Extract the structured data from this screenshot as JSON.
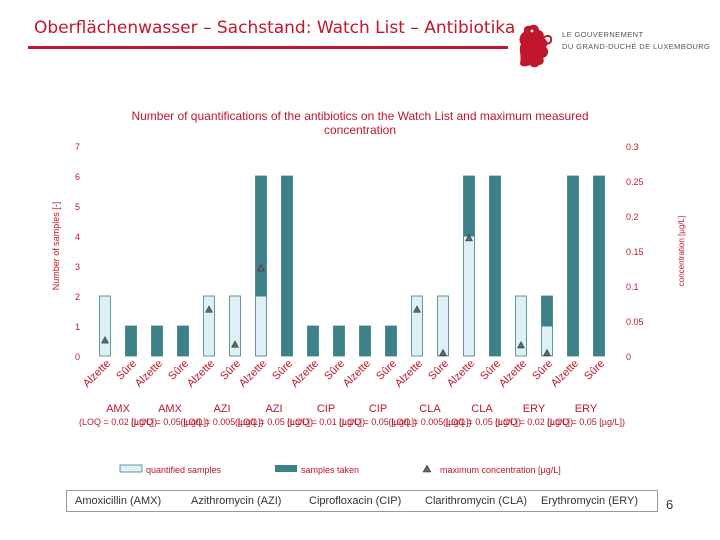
{
  "slide": {
    "title": "Oberflächenwasser – Sachstand: Watch List – Antibiotika",
    "logo_line1": "LE GOUVERNEMENT",
    "logo_line2": "DU GRAND-DUCHÉ DE LUXEMBOURG",
    "page_number": "6",
    "colors": {
      "accent": "#c0172c",
      "bar_dark": "#3c8188",
      "bar_light": "#ddf1f4"
    }
  },
  "substances": [
    "Amoxicillin (AMX)",
    "Azithromycin (AZI)",
    "Ciprofloxacin (CIP)",
    "Clarithromycin (CLA)",
    "Erythromycin (ERY)"
  ],
  "chart_data": {
    "type": "bar",
    "title": "Number of quantifications of the antibiotics on the Watch List and maximum measured concentration",
    "ylabel": "Number of samples [-]",
    "y2label": "concentration [µg/L]",
    "ylim": [
      0,
      7
    ],
    "y2lim": [
      0,
      0.3
    ],
    "yticks": [
      "0",
      "1",
      "2",
      "3",
      "4",
      "5",
      "6",
      "7"
    ],
    "y2ticks": [
      "0",
      "0.05",
      "0.1",
      "0.15",
      "0.2",
      "0.25",
      "0.3"
    ],
    "categories": [
      "Alzette",
      "Sûre",
      "Alzette",
      "Sûre",
      "Alzette",
      "Sûre",
      "Alzette",
      "Sûre",
      "Alzette",
      "Sûre",
      "Alzette",
      "Sûre",
      "Alzette",
      "Sûre",
      "Alzette",
      "Sûre",
      "Alzette",
      "Sûre",
      "Alzette",
      "Sûre"
    ],
    "groups": [
      {
        "label": "AMX",
        "loq": "(LOQ = 0.02 [µg/L])"
      },
      {
        "label": "AMX",
        "loq": "(LOQ = 0.05 [µg/L])"
      },
      {
        "label": "AZI",
        "loq": "(LOQ = 0.005 [µg/L])"
      },
      {
        "label": "AZI",
        "loq": "(LOQ = 0.05 [µg/L])"
      },
      {
        "label": "CIP",
        "loq": "(LOQ = 0.01 [µg/L])"
      },
      {
        "label": "CIP",
        "loq": "(LOQ = 0.05 [µg/L])"
      },
      {
        "label": "CLA",
        "loq": "(LOQ = 0.005 [µg/L])"
      },
      {
        "label": "CLA",
        "loq": "(LOQ = 0.05 [µg/L])"
      },
      {
        "label": "ERY",
        "loq": "(LOQ = 0.02 [µg/L])"
      },
      {
        "label": "ERY",
        "loq": "(LOQ = 0.05 [µg/L])"
      }
    ],
    "series": [
      {
        "name": "quantified samples",
        "values": [
          2,
          0,
          0,
          0,
          2,
          2,
          2,
          0,
          0,
          0,
          0,
          0,
          2,
          2,
          4,
          0,
          2,
          1,
          0,
          0
        ]
      },
      {
        "name": "samples taken",
        "values": [
          2,
          1,
          1,
          1,
          2,
          2,
          6,
          6,
          1,
          1,
          1,
          1,
          2,
          2,
          6,
          6,
          2,
          2,
          6,
          6
        ]
      },
      {
        "name": "maximum concentration [µg/L]",
        "values": [
          0.022,
          null,
          null,
          null,
          0.066,
          0.016,
          0.125,
          null,
          null,
          null,
          null,
          null,
          0.066,
          0.004,
          0.168,
          null,
          0.015,
          0.004,
          null,
          null
        ]
      }
    ],
    "grid": false,
    "legend": "bottom"
  }
}
